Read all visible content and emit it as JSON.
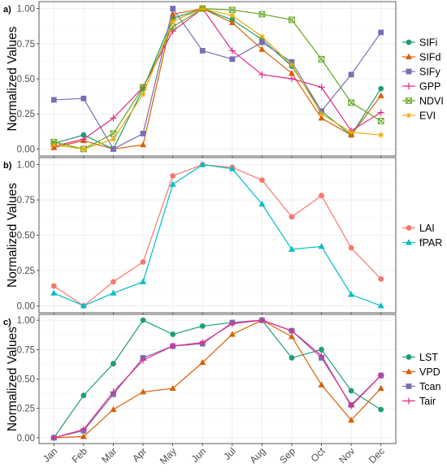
{
  "x_categories": [
    "Jan",
    "Feb",
    "Mar",
    "Apr",
    "May",
    "Jun",
    "Jul",
    "Aug",
    "Sep",
    "Oct",
    "Nov",
    "Dec"
  ],
  "chart_data": [
    {
      "panel_label": "a)",
      "type": "line",
      "ylabel": "Normalized Values",
      "ylim": [
        0,
        1
      ],
      "yticks": [
        "0.00",
        "0.25",
        "0.50",
        "0.75",
        "1.00"
      ],
      "grid": true,
      "legend_position": "right",
      "series": [
        {
          "name": "SIFi",
          "color": "#1b9e77",
          "marker": "circle",
          "values": [
            0.04,
            0.1,
            0.0,
            0.43,
            0.93,
            1.0,
            0.92,
            0.78,
            0.59,
            0.27,
            0.1,
            0.43
          ]
        },
        {
          "name": "SIFd",
          "color": "#d95f02",
          "marker": "triangle",
          "values": [
            0.01,
            0.06,
            0.0,
            0.03,
            0.96,
            1.0,
            0.9,
            0.71,
            0.54,
            0.22,
            0.1,
            0.38
          ]
        },
        {
          "name": "SIFy",
          "color": "#7570b3",
          "marker": "square",
          "values": [
            0.35,
            0.36,
            0.0,
            0.11,
            1.0,
            0.7,
            0.64,
            0.76,
            0.62,
            0.27,
            0.53,
            0.83
          ]
        },
        {
          "name": "GPP",
          "color": "#e7298a",
          "marker": "plus",
          "values": [
            0.02,
            0.07,
            0.22,
            0.44,
            0.84,
            1.0,
            0.7,
            0.53,
            0.5,
            0.44,
            0.13,
            0.26
          ]
        },
        {
          "name": "NDVI",
          "color": "#66a61e",
          "marker": "square-cross",
          "values": [
            0.05,
            0.0,
            0.11,
            0.44,
            0.87,
            1.0,
            0.99,
            0.96,
            0.92,
            0.64,
            0.33,
            0.2
          ]
        },
        {
          "name": "EVI",
          "color": "#e6ab02",
          "marker": "asterisk",
          "values": [
            0.03,
            0.0,
            0.07,
            0.39,
            0.91,
            1.0,
            0.95,
            0.8,
            0.6,
            0.25,
            0.12,
            0.1
          ]
        }
      ]
    },
    {
      "panel_label": "b)",
      "type": "line",
      "ylabel": "Normalized Values",
      "ylim": [
        0,
        1
      ],
      "yticks": [
        "0.00",
        "0.25",
        "0.50",
        "0.75",
        "1.00"
      ],
      "grid": true,
      "legend_position": "right",
      "series": [
        {
          "name": "LAI",
          "color": "#f8766d",
          "marker": "circle",
          "values": [
            0.14,
            0.0,
            0.17,
            0.31,
            0.92,
            1.0,
            0.98,
            0.89,
            0.63,
            0.78,
            0.41,
            0.19
          ]
        },
        {
          "name": "fPAR",
          "color": "#00bfc4",
          "marker": "triangle",
          "values": [
            0.09,
            0.0,
            0.09,
            0.17,
            0.86,
            1.0,
            0.97,
            0.72,
            0.4,
            0.42,
            0.08,
            0.0
          ]
        }
      ]
    },
    {
      "panel_label": "c)",
      "type": "line",
      "ylabel": "Normalized Values",
      "ylim": [
        0,
        1
      ],
      "yticks": [
        "0.00",
        "0.25",
        "0.50",
        "0.75",
        "1.00"
      ],
      "grid": true,
      "legend_position": "right",
      "series": [
        {
          "name": "LST",
          "color": "#1b9e77",
          "marker": "circle",
          "values": [
            0.0,
            0.36,
            0.63,
            1.0,
            0.88,
            0.95,
            0.98,
            1.0,
            0.68,
            0.75,
            0.4,
            0.24
          ]
        },
        {
          "name": "VPD",
          "color": "#d95f02",
          "marker": "triangle",
          "values": [
            0.0,
            0.01,
            0.24,
            0.39,
            0.42,
            0.64,
            0.88,
            1.0,
            0.86,
            0.45,
            0.15,
            0.42
          ]
        },
        {
          "name": "Tcan",
          "color": "#7570b3",
          "marker": "square",
          "values": [
            0.0,
            0.06,
            0.37,
            0.68,
            0.78,
            0.8,
            0.98,
            1.0,
            0.91,
            0.68,
            0.28,
            0.53
          ]
        },
        {
          "name": "Tair",
          "color": "#e7298a",
          "marker": "plus",
          "values": [
            0.0,
            0.07,
            0.39,
            0.66,
            0.78,
            0.81,
            0.97,
            1.0,
            0.91,
            0.7,
            0.27,
            0.53
          ]
        }
      ]
    }
  ]
}
